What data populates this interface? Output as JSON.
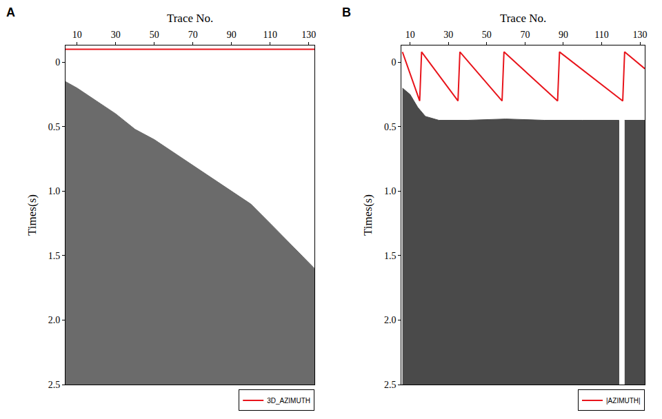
{
  "chart_data": [
    {
      "type": "line",
      "title": "A",
      "xlabel": "Trace No.",
      "ylabel": "Times(s)",
      "xlim": [
        4,
        133
      ],
      "xticks": [
        10,
        30,
        50,
        70,
        90,
        110,
        130
      ],
      "ylim": [
        2.5,
        -0.13
      ],
      "yticks": [
        0,
        0.5,
        {
          "value": 1,
          "label": "1.0"
        },
        1.5,
        {
          "value": 2,
          "label": "2.0"
        },
        2.5
      ],
      "grid": false,
      "legend": "bottom right",
      "series": [
        {
          "type": "area",
          "color": "#6b6b6b",
          "x": [
            4,
            10,
            20,
            30,
            40,
            50,
            60,
            70,
            80,
            90,
            100,
            110,
            120,
            133
          ],
          "values": [
            0.15,
            0.2,
            0.3,
            0.4,
            0.52,
            0.6,
            0.7,
            0.8,
            0.9,
            1.0,
            1.1,
            1.25,
            1.4,
            1.6
          ]
        },
        {
          "type": "line",
          "name": "3D_AZIMUTH",
          "color": "#e8141b",
          "x": [
            4,
            133
          ],
          "values": [
            -0.1,
            -0.1
          ]
        }
      ]
    },
    {
      "type": "line",
      "title": "B",
      "xlabel": "Trace No.",
      "ylabel": "Times(s)",
      "xlim": [
        5.5,
        132.5
      ],
      "xticks": [
        10,
        30,
        50,
        70,
        90,
        110,
        130
      ],
      "ylim": [
        2.5,
        -0.13
      ],
      "yticks": [
        0,
        0.5,
        {
          "value": 1,
          "label": "1.0"
        },
        1.5,
        {
          "value": 2,
          "label": "2.0"
        },
        2.5
      ],
      "grid": false,
      "legend": "bottom right",
      "series": [
        {
          "type": "area",
          "color": "#4a4a4a",
          "x": [
            6,
            10,
            14,
            18,
            25,
            40,
            60,
            80,
            100,
            110,
            119
          ],
          "values": [
            0.2,
            0.25,
            0.35,
            0.42,
            0.45,
            0.45,
            0.44,
            0.45,
            0.45,
            0.45,
            0.45
          ]
        },
        {
          "type": "area",
          "color": "#4a4a4a",
          "x": [
            122,
            132.5
          ],
          "values": [
            0.45,
            0.45
          ]
        },
        {
          "type": "line",
          "name": "|AZIMUTH|",
          "color": "#e8141b",
          "x": [
            6,
            15,
            16,
            35,
            36,
            58,
            59,
            87,
            88,
            121,
            122,
            132.5
          ],
          "values": [
            -0.08,
            0.3,
            -0.08,
            0.3,
            -0.08,
            0.3,
            -0.08,
            0.3,
            -0.08,
            0.3,
            -0.08,
            0.05
          ]
        }
      ]
    }
  ]
}
